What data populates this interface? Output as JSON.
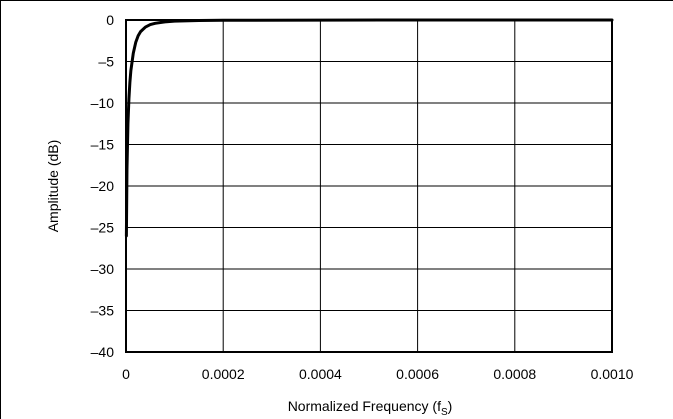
{
  "chart_data": {
    "type": "line",
    "title": "",
    "xlabel": "Normalized Frequency (f",
    "xlabel_subscript": "S",
    "xlabel_suffix": ")",
    "ylabel": "Amplitude (dB)",
    "xlim": [
      0,
      0.001
    ],
    "ylim": [
      -40,
      0
    ],
    "x_ticks": [
      0,
      0.0002,
      0.0004,
      0.0006,
      0.0008,
      0.001
    ],
    "x_tick_labels": [
      "0",
      "0.0002",
      "0.0004",
      "0.0006",
      "0.0008",
      "0.0010"
    ],
    "y_ticks": [
      0,
      -5,
      -10,
      -15,
      -20,
      -25,
      -30,
      -35,
      -40
    ],
    "y_tick_labels": [
      "0",
      "–5",
      "–10",
      "–15",
      "–20",
      "–25",
      "–30",
      "–35",
      "–40"
    ],
    "grid": true,
    "legend": "none",
    "series": [
      {
        "color": "#000000",
        "x": [
          8e-07,
          2e-06,
          4e-06,
          6e-06,
          8e-06,
          1e-05,
          1.5e-05,
          2e-05,
          2.5e-05,
          3e-05,
          4e-05,
          5e-05,
          6e-05,
          8e-05,
          0.0001,
          0.00012,
          0.00015,
          0.0002,
          0.0004,
          0.0006,
          0.0008,
          0.001
        ],
        "y": [
          -26,
          -18,
          -12.5,
          -9.5,
          -7.5,
          -6.1,
          -4.0,
          -2.7,
          -1.9,
          -1.4,
          -0.85,
          -0.55,
          -0.4,
          -0.22,
          -0.14,
          -0.1,
          -0.06,
          -0.03,
          -0.01,
          -0.005,
          -0.003,
          -0.002
        ]
      }
    ]
  }
}
